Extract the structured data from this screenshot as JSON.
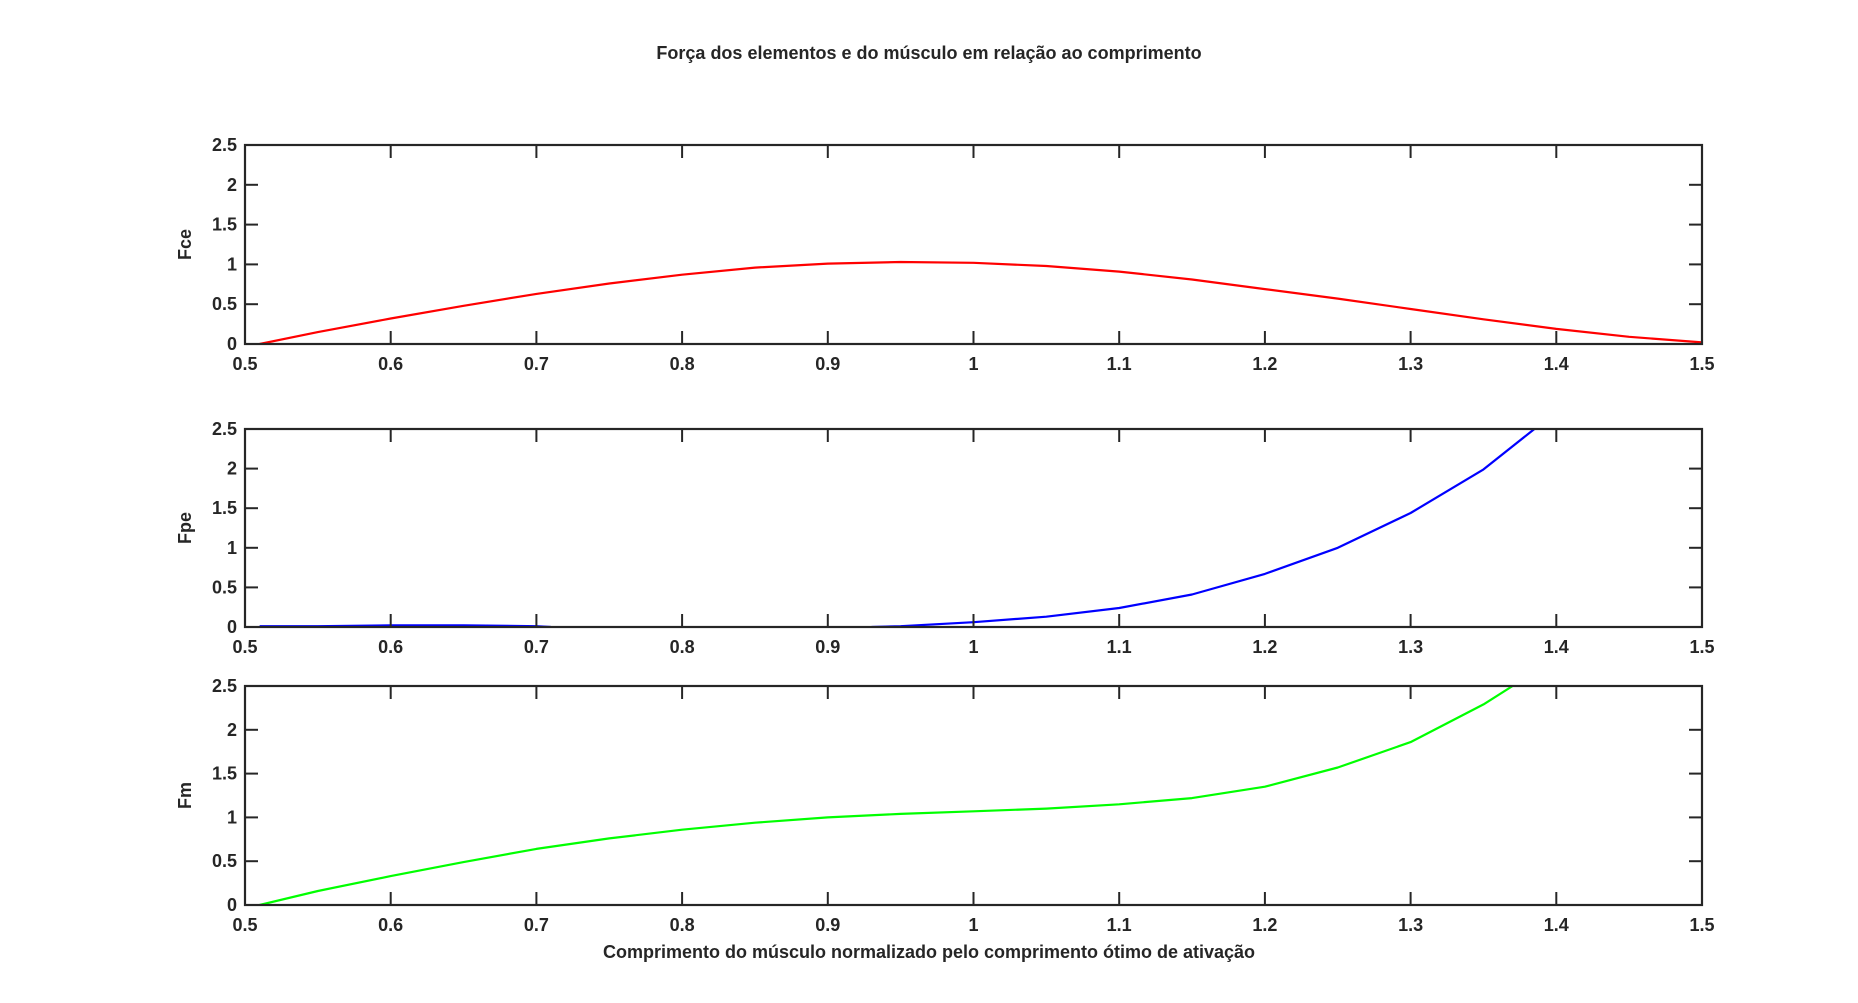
{
  "figure": {
    "title": "Força dos elementos e do músculo em relação ao comprimento",
    "xlabel": "Comprimento do músculo normalizado pelo comprimento ótimo de ativação"
  },
  "chart_data": [
    {
      "type": "line",
      "title": "",
      "xlabel": "",
      "ylabel": "Fce",
      "xlim": [
        0.5,
        1.5
      ],
      "ylim": [
        0,
        2.5
      ],
      "xticks": [
        0.5,
        0.6,
        0.7,
        0.8,
        0.9,
        1,
        1.1,
        1.2,
        1.3,
        1.4,
        1.5
      ],
      "yticks": [
        0,
        0.5,
        1,
        1.5,
        2,
        2.5
      ],
      "grid": false,
      "series": [
        {
          "color": "#ff0000",
          "x": [
            0.51,
            0.55,
            0.6,
            0.65,
            0.7,
            0.75,
            0.8,
            0.85,
            0.9,
            0.95,
            1.0,
            1.05,
            1.1,
            1.15,
            1.2,
            1.25,
            1.3,
            1.35,
            1.4,
            1.45,
            1.5
          ],
          "y": [
            0.0,
            0.15,
            0.32,
            0.48,
            0.63,
            0.76,
            0.87,
            0.96,
            1.01,
            1.03,
            1.02,
            0.98,
            0.91,
            0.81,
            0.69,
            0.57,
            0.44,
            0.31,
            0.19,
            0.09,
            0.02
          ]
        }
      ]
    },
    {
      "type": "line",
      "title": "",
      "xlabel": "",
      "ylabel": "Fpe",
      "xlim": [
        0.5,
        1.5
      ],
      "ylim": [
        0,
        2.5
      ],
      "xticks": [
        0.5,
        0.6,
        0.7,
        0.8,
        0.9,
        1,
        1.1,
        1.2,
        1.3,
        1.4,
        1.5
      ],
      "yticks": [
        0,
        0.5,
        1,
        1.5,
        2,
        2.5
      ],
      "grid": false,
      "series": [
        {
          "color": "#0000ff",
          "segments": [
            {
              "x": [
                0.51,
                0.55,
                0.6,
                0.65,
                0.7,
                0.71
              ],
              "y": [
                0.01,
                0.01,
                0.02,
                0.02,
                0.01,
                0.0
              ]
            },
            {
              "x": [
                0.93,
                0.95,
                1.0,
                1.05,
                1.1,
                1.15,
                1.2,
                1.25,
                1.3,
                1.35,
                1.385
              ],
              "y": [
                0.0,
                0.01,
                0.06,
                0.13,
                0.24,
                0.41,
                0.67,
                1.0,
                1.44,
                1.99,
                2.5
              ]
            }
          ]
        }
      ]
    },
    {
      "type": "line",
      "title": "",
      "xlabel": "Comprimento do músculo normalizado pelo comprimento ótimo de ativação",
      "ylabel": "Fm",
      "xlim": [
        0.5,
        1.5
      ],
      "ylim": [
        0,
        2.5
      ],
      "xticks": [
        0.5,
        0.6,
        0.7,
        0.8,
        0.9,
        1,
        1.1,
        1.2,
        1.3,
        1.4,
        1.5
      ],
      "yticks": [
        0,
        0.5,
        1,
        1.5,
        2,
        2.5
      ],
      "grid": false,
      "series": [
        {
          "color": "#00ff00",
          "x": [
            0.51,
            0.55,
            0.6,
            0.65,
            0.7,
            0.75,
            0.8,
            0.85,
            0.9,
            0.95,
            1.0,
            1.05,
            1.1,
            1.15,
            1.2,
            1.25,
            1.3,
            1.35,
            1.37
          ],
          "y": [
            0.0,
            0.16,
            0.33,
            0.49,
            0.64,
            0.76,
            0.86,
            0.94,
            1.0,
            1.04,
            1.07,
            1.1,
            1.15,
            1.22,
            1.35,
            1.57,
            1.86,
            2.29,
            2.5
          ]
        }
      ]
    }
  ]
}
